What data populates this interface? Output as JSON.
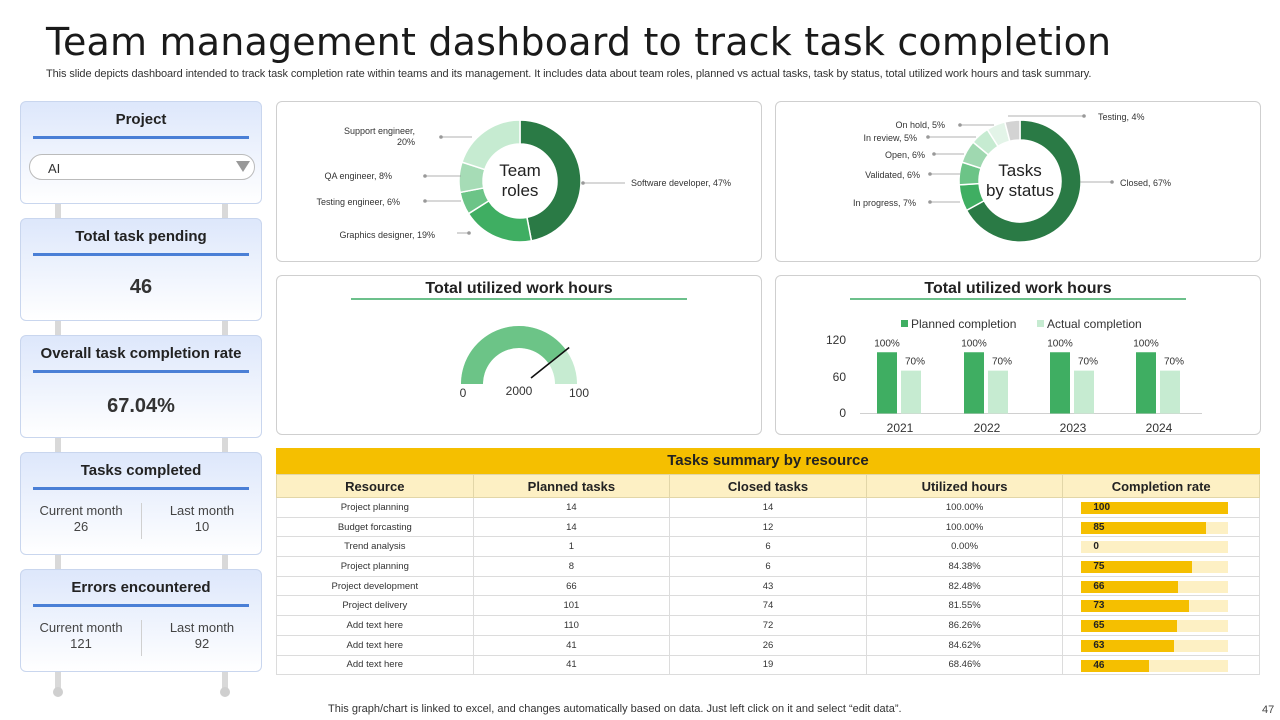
{
  "header": {
    "title": "Team management dashboard to track task completion",
    "subtitle": "This slide depicts dashboard intended to track task completion rate within teams and its management. It includes data about team roles, planned vs actual tasks, task by status, total utilized work hours and task summary."
  },
  "sidebar": {
    "project": {
      "label": "Project",
      "selected": "AI"
    },
    "pending": {
      "label": "Total task pending",
      "value": "46"
    },
    "completion": {
      "label": "Overall task completion rate",
      "value": "67.04%"
    },
    "completed": {
      "label": "Tasks completed",
      "current_label": "Current  month",
      "current_value": "26",
      "last_label": "Last month",
      "last_value": "10"
    },
    "errors": {
      "label": "Errors encountered",
      "current_label": "Current  month",
      "current_value": "121",
      "last_label": "Last month",
      "last_value": "92"
    }
  },
  "colors": {
    "dark_green": "#2a7a45",
    "mid_green": "#3fae62",
    "light_green": "#7fcf95",
    "pale_green": "#c6ebd1",
    "yellow": "#f5bf00",
    "blue": "#4a7fd6"
  },
  "chart_data": [
    {
      "type": "pie",
      "title": "Team roles",
      "title_lines": [
        "Team",
        "roles"
      ],
      "slices": [
        {
          "label": "Software developer, 47%",
          "value": 47,
          "color": "#2a7a45"
        },
        {
          "label": "Graphics designer, 19%",
          "value": 19,
          "color": "#3fae62"
        },
        {
          "label": "Testing engineer, 6%",
          "value": 6,
          "color": "#6cc487"
        },
        {
          "label": "QA engineer, 8%",
          "value": 8,
          "color": "#a6dcb6"
        },
        {
          "label": "Support engineer, 20%",
          "value": 20,
          "color": "#c6ebd1"
        }
      ],
      "support_label_lines": [
        "Support engineer,",
        "20%"
      ]
    },
    {
      "type": "pie",
      "title": "Tasks by status",
      "title_lines": [
        "Tasks",
        "by status"
      ],
      "slices": [
        {
          "label": "Closed, 67%",
          "value": 67,
          "color": "#2a7a45"
        },
        {
          "label": "In progress, 7%",
          "value": 7,
          "color": "#3fae62"
        },
        {
          "label": "Validated, 6%",
          "value": 6,
          "color": "#6cc487"
        },
        {
          "label": "Open, 6%",
          "value": 6,
          "color": "#9fd8b0"
        },
        {
          "label": "In review, 5%",
          "value": 5,
          "color": "#c6ebd1"
        },
        {
          "label": "On hold, 5%",
          "value": 5,
          "color": "#e3f4e8"
        },
        {
          "label": "Testing, 4%",
          "value": 4,
          "color": "#d3d3d3"
        }
      ]
    },
    {
      "type": "gauge",
      "title": "Total utilized work hours",
      "min": 0,
      "max": 100,
      "center_value": 2000,
      "needle_fraction": 0.8,
      "min_label": "0",
      "max_label": "100",
      "value_label": "2000"
    },
    {
      "type": "bar",
      "title": "Total utilized work hours",
      "categories": [
        "2021",
        "2022",
        "2023",
        "2024"
      ],
      "series": [
        {
          "name": "Planned completion",
          "values": [
            100,
            100,
            100,
            100
          ],
          "labels": [
            "100%",
            "100%",
            "100%",
            "100%"
          ],
          "color": "#3fae62"
        },
        {
          "name": "Actual completion",
          "values": [
            70,
            70,
            70,
            70
          ],
          "labels": [
            "70%",
            "70%",
            "70%",
            "70%"
          ],
          "color": "#c6ebd1"
        }
      ],
      "ylim": [
        0,
        120
      ],
      "yticks": [
        "0",
        "60",
        "120"
      ],
      "legend": "top"
    },
    {
      "type": "table",
      "title": "Tasks summary by resource",
      "columns": [
        "Resource",
        "Planned tasks",
        "Closed tasks",
        "Utilized hours",
        "Completion rate"
      ],
      "rows": [
        {
          "resource": "Project planning",
          "planned": "14",
          "closed": "14",
          "hours": "100.00%",
          "rate": 100
        },
        {
          "resource": "Budget forcasting",
          "planned": "14",
          "closed": "12",
          "hours": "100.00%",
          "rate": 85
        },
        {
          "resource": "Trend analysis",
          "planned": "1",
          "closed": "6",
          "hours": "0.00%",
          "rate": 0
        },
        {
          "resource": "Project planning",
          "planned": "8",
          "closed": "6",
          "hours": "84.38%",
          "rate": 75
        },
        {
          "resource": "Project development",
          "planned": "66",
          "closed": "43",
          "hours": "82.48%",
          "rate": 66
        },
        {
          "resource": "Project delivery",
          "planned": "101",
          "closed": "74",
          "hours": "81.55%",
          "rate": 73
        },
        {
          "resource": "Add text here",
          "planned": "110",
          "closed": "72",
          "hours": "86.26%",
          "rate": 65
        },
        {
          "resource": "Add text here",
          "planned": "41",
          "closed": "26",
          "hours": "84.62%",
          "rate": 63
        },
        {
          "resource": "Add text here",
          "planned": "41",
          "closed": "19",
          "hours": "68.46%",
          "rate": 46
        }
      ]
    }
  ],
  "footer": {
    "note": "This graph/chart is linked to excel, and changes automatically based on data. Just left click on it and select “edit data”.",
    "page": "47"
  }
}
